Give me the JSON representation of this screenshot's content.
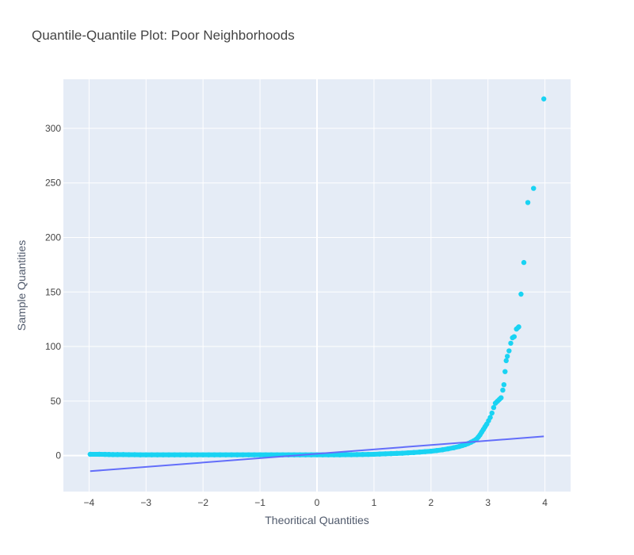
{
  "chart_data": {
    "type": "scatter",
    "title": "Quantile-Quantile Plot: Poor Neighborhoods",
    "xlabel": "Theoritical Quantities",
    "ylabel": "Sample Quantities",
    "xlim": [
      -4.45,
      4.45
    ],
    "ylim": [
      -33,
      345
    ],
    "xticks": [
      -4,
      -3,
      -2,
      -1,
      0,
      1,
      2,
      3,
      4
    ],
    "yticks": [
      0,
      50,
      100,
      150,
      200,
      250,
      300
    ],
    "grid": true,
    "plot_background": "#e5ecf6",
    "series": [
      {
        "kind": "markers",
        "color": "#19d3f3",
        "points": [
          [
            -3.98,
            1.2
          ],
          [
            -3.82,
            1.2
          ],
          [
            -3.72,
            1.1
          ],
          [
            -3.65,
            1.0
          ],
          [
            -3.58,
            0.9
          ],
          [
            -3.5,
            0.9
          ],
          [
            -3.4,
            0.9
          ],
          [
            -3.3,
            0.8
          ],
          [
            -3.2,
            0.8
          ],
          [
            -3.1,
            0.7
          ],
          [
            -3.0,
            0.7
          ],
          [
            -2.9,
            0.7
          ],
          [
            -2.8,
            0.7
          ],
          [
            -2.7,
            0.7
          ],
          [
            -2.6,
            0.7
          ],
          [
            -2.5,
            0.7
          ],
          [
            -2.4,
            0.7
          ],
          [
            -2.3,
            0.7
          ],
          [
            -2.2,
            0.7
          ],
          [
            -2.1,
            0.7
          ],
          [
            -2.0,
            0.7
          ],
          [
            -1.9,
            0.7
          ],
          [
            -1.8,
            0.7
          ],
          [
            -1.7,
            0.7
          ],
          [
            -1.6,
            0.7
          ],
          [
            -1.5,
            0.7
          ],
          [
            -1.4,
            0.7
          ],
          [
            -1.3,
            0.7
          ],
          [
            -1.2,
            0.7
          ],
          [
            -1.1,
            0.7
          ],
          [
            -1.0,
            0.7
          ],
          [
            -0.9,
            0.7
          ],
          [
            -0.8,
            0.7
          ],
          [
            -0.7,
            0.7
          ],
          [
            -0.6,
            0.7
          ],
          [
            -0.5,
            0.7
          ],
          [
            -0.4,
            0.7
          ],
          [
            -0.3,
            0.7
          ],
          [
            -0.2,
            0.7
          ],
          [
            -0.1,
            0.7
          ],
          [
            0.0,
            0.7
          ],
          [
            0.1,
            0.7
          ],
          [
            0.2,
            0.7
          ],
          [
            0.3,
            0.7
          ],
          [
            0.4,
            0.7
          ],
          [
            0.5,
            0.8
          ],
          [
            0.6,
            0.8
          ],
          [
            0.7,
            0.9
          ],
          [
            0.8,
            1.0
          ],
          [
            0.9,
            1.1
          ],
          [
            1.0,
            1.2
          ],
          [
            1.1,
            1.4
          ],
          [
            1.2,
            1.6
          ],
          [
            1.3,
            1.8
          ],
          [
            1.4,
            2.0
          ],
          [
            1.5,
            2.2
          ],
          [
            1.6,
            2.5
          ],
          [
            1.7,
            2.8
          ],
          [
            1.8,
            3.2
          ],
          [
            1.9,
            3.6
          ],
          [
            2.0,
            4.0
          ],
          [
            2.1,
            4.6
          ],
          [
            2.2,
            5.3
          ],
          [
            2.3,
            6.2
          ],
          [
            2.4,
            7.2
          ],
          [
            2.5,
            8.4
          ],
          [
            2.55,
            9.2
          ],
          [
            2.6,
            10.0
          ],
          [
            2.65,
            11.0
          ],
          [
            2.7,
            12.2
          ],
          [
            2.75,
            13.5
          ],
          [
            2.8,
            15.2
          ],
          [
            2.83,
            17.0
          ],
          [
            2.86,
            19.0
          ],
          [
            2.89,
            21.5
          ],
          [
            2.92,
            24.0
          ],
          [
            2.95,
            26.5
          ],
          [
            2.98,
            29.0
          ],
          [
            3.01,
            32.0
          ],
          [
            3.04,
            35.0
          ],
          [
            3.07,
            39.0
          ],
          [
            3.1,
            44.0
          ],
          [
            3.13,
            48.0
          ],
          [
            3.17,
            50.0
          ],
          [
            3.2,
            51.5
          ],
          [
            3.23,
            53.0
          ],
          [
            3.26,
            60.0
          ],
          [
            3.28,
            65.0
          ],
          [
            3.3,
            77.0
          ],
          [
            3.32,
            87.0
          ],
          [
            3.34,
            91.0
          ],
          [
            3.37,
            96.0
          ],
          [
            3.4,
            103.0
          ],
          [
            3.43,
            108.0
          ],
          [
            3.46,
            109.0
          ],
          [
            3.5,
            116.0
          ],
          [
            3.54,
            118.0
          ],
          [
            3.58,
            148.0
          ],
          [
            3.63,
            177.0
          ],
          [
            3.7,
            232.0
          ],
          [
            3.8,
            245.0
          ],
          [
            3.98,
            327.0
          ]
        ]
      },
      {
        "kind": "line",
        "color": "#636efa",
        "points": [
          [
            -3.98,
            -14.3
          ],
          [
            3.98,
            17.6
          ]
        ]
      }
    ]
  }
}
